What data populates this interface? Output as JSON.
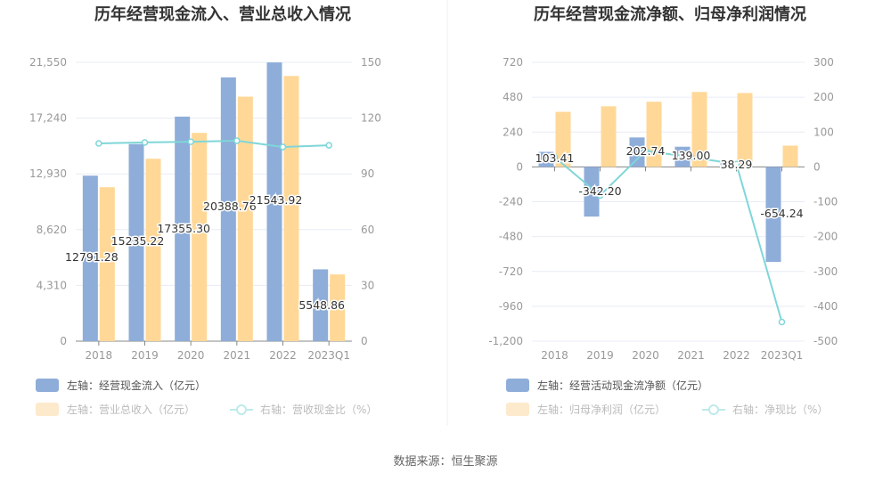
{
  "colors": {
    "bar1": "#8eadd9",
    "bar2": "#ffd898",
    "line": "#7fd6d8",
    "grid": "#e8ecf5",
    "legend_faded_fill": "#fde9cb"
  },
  "source": "数据来源：恒生聚源",
  "chart_data": [
    {
      "type": "bar+line",
      "title": "历年经营现金流入、营业总收入情况",
      "categories": [
        "2018",
        "2019",
        "2020",
        "2021",
        "2022",
        "2023Q1"
      ],
      "left_axis": {
        "ticks": [
          "0",
          "4,310",
          "8,620",
          "12,930",
          "17,240",
          "21,550"
        ],
        "ylim": [
          0,
          21550
        ]
      },
      "right_axis": {
        "ticks": [
          "0",
          "30",
          "60",
          "90",
          "120",
          "150"
        ],
        "ylim": [
          0,
          150
        ]
      },
      "series": [
        {
          "name": "左轴：经营现金流入（亿元）",
          "type": "bar",
          "axis": "left",
          "values": [
            12791.28,
            15235.22,
            17355.3,
            20388.76,
            21543.92,
            5548.86
          ],
          "labels": [
            "12791.28",
            "15235.22",
            "17355.30",
            "20388.76",
            "21543.92",
            "5548.86"
          ]
        },
        {
          "name": "左轴：营业总收入（亿元）",
          "type": "bar",
          "axis": "left",
          "values": [
            11900,
            14100,
            16100,
            18900,
            20500,
            5160
          ]
        },
        {
          "name": "右轴：营收现金比（%）",
          "type": "line",
          "axis": "right",
          "values": [
            106.4,
            106.9,
            107.3,
            107.8,
            104.5,
            105.4
          ]
        }
      ]
    },
    {
      "type": "bar+line",
      "title": "历年经营现金流净额、归母净利润情况",
      "categories": [
        "2018",
        "2019",
        "2020",
        "2021",
        "2022",
        "2023Q1"
      ],
      "left_axis": {
        "ticks": [
          "-1,200",
          "-960",
          "-720",
          "-480",
          "-240",
          "0",
          "240",
          "480",
          "720"
        ],
        "ylim": [
          -1200,
          720
        ]
      },
      "right_axis": {
        "ticks": [
          "-500",
          "-400",
          "-300",
          "-200",
          "-100",
          "0",
          "100",
          "200",
          "300"
        ],
        "ylim": [
          -500,
          300
        ]
      },
      "series": [
        {
          "name": "左轴：经营活动现金流净额（亿元）",
          "type": "bar",
          "axis": "left",
          "values": [
            103.41,
            -342.2,
            202.74,
            139.0,
            38.29,
            -654.24
          ],
          "labels": [
            "103.41",
            "-342.20",
            "202.74",
            "139.00",
            "38.29",
            "-654.24"
          ]
        },
        {
          "name": "左轴：归母净利润（亿元）",
          "type": "bar",
          "axis": "right",
          "values": [
            158,
            174,
            187,
            215,
            212,
            61
          ]
        },
        {
          "name": "右轴：净现比（%）",
          "type": "line",
          "axis": "right",
          "values": [
            28,
            -82,
            46,
            28,
            8,
            -445
          ]
        }
      ]
    }
  ]
}
